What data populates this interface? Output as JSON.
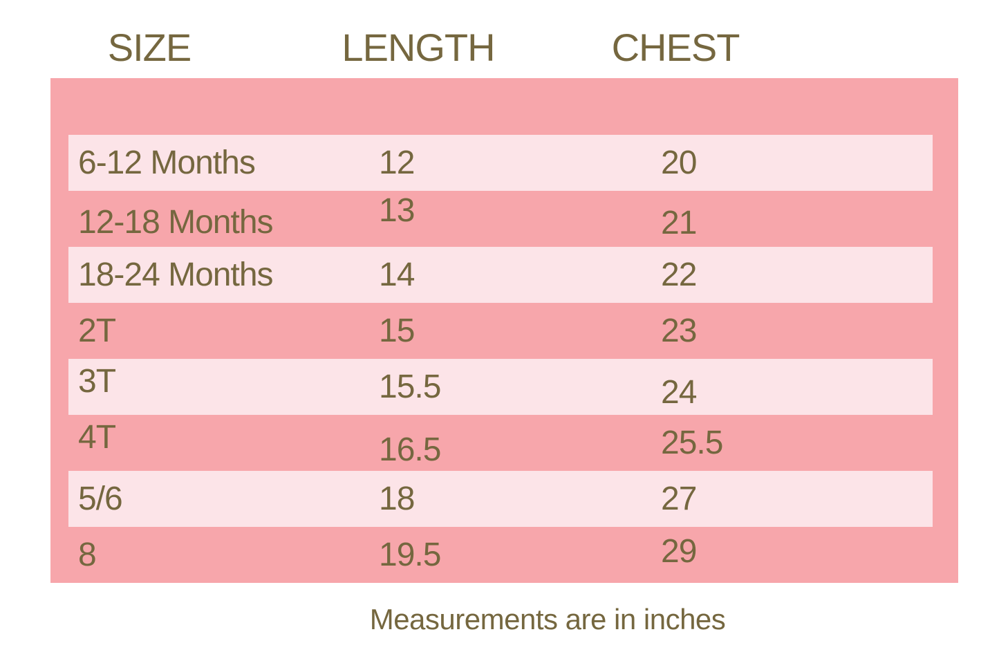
{
  "colors": {
    "panel_pink": "#f7a6ab",
    "stripe_pink": "#fce4e8",
    "text_olive": "#75673f",
    "page_background": "#ffffff"
  },
  "chart_data": {
    "type": "table",
    "columns": [
      "SIZE",
      "LENGTH",
      "CHEST"
    ],
    "rows": [
      [
        "6-12 Months",
        "12",
        "20"
      ],
      [
        "12-18 Months",
        "13",
        "21"
      ],
      [
        "18-24 Months",
        "14",
        "22"
      ],
      [
        "2T",
        "15",
        "23"
      ],
      [
        "3T",
        "15.5",
        "24"
      ],
      [
        "4T",
        "16.5",
        "25.5"
      ],
      [
        "5/6",
        "18",
        "27"
      ],
      [
        "8",
        "19.5",
        "29"
      ]
    ],
    "units_note": "Measurements are in inches",
    "layout_hints": "pink panel with alternating light stripes, olive text, no gridlines"
  },
  "footer": {
    "note": "Measurements are in inches"
  }
}
